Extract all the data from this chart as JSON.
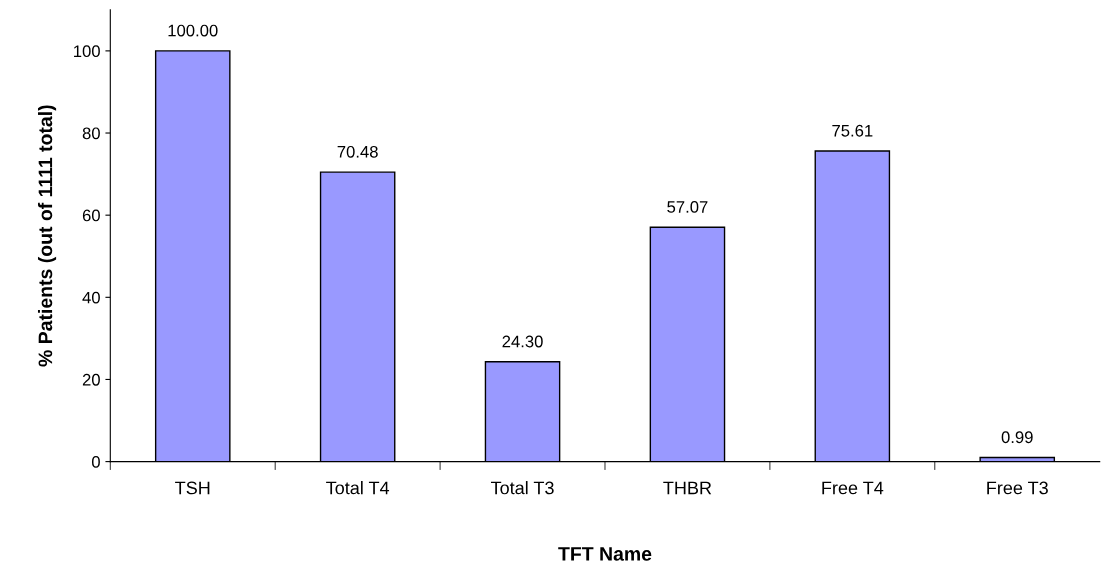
{
  "chart_data": {
    "type": "bar",
    "xlabel": "TFT Name",
    "ylabel": "% Patients (out of 1111 total)",
    "categories": [
      "TSH",
      "Total T4",
      "Total T3",
      "THBR",
      "Free T4",
      "Free T3"
    ],
    "values": [
      100.0,
      70.48,
      24.3,
      57.07,
      75.61,
      0.99
    ],
    "value_labels": [
      "100.00",
      "70.48",
      "24.30",
      "57.07",
      "75.61",
      "0.99"
    ],
    "color": "#9999ff",
    "ylim": [
      0,
      110
    ],
    "yticks": [
      0,
      20,
      40,
      60,
      80,
      100
    ],
    "grid": false,
    "legend": false
  }
}
